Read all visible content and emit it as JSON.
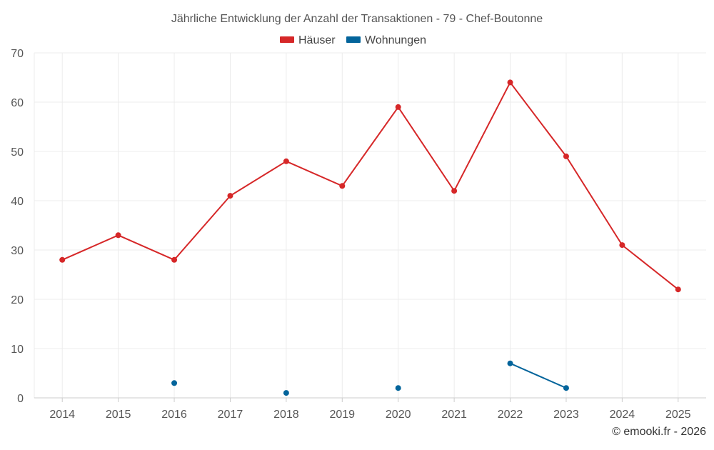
{
  "chart_data": {
    "type": "line",
    "title": "Jährliche Entwicklung der Anzahl der Transaktionen - 79 - Chef-Boutonne",
    "categories": [
      "2014",
      "2015",
      "2016",
      "2017",
      "2018",
      "2019",
      "2020",
      "2021",
      "2022",
      "2023",
      "2024",
      "2025"
    ],
    "series": [
      {
        "name": "Häuser",
        "color": "#d62728",
        "values": [
          28,
          33,
          28,
          41,
          48,
          43,
          59,
          42,
          64,
          49,
          31,
          22
        ]
      },
      {
        "name": "Wohnungen",
        "color": "#03649b",
        "values": [
          null,
          null,
          3,
          null,
          1,
          null,
          2,
          null,
          7,
          2,
          null,
          null
        ]
      }
    ],
    "yticks": [
      0,
      10,
      20,
      30,
      40,
      50,
      60,
      70
    ],
    "ylim": [
      0,
      70
    ],
    "grid": true,
    "legend": "top-center",
    "credit": "© emooki.fr - 2026"
  }
}
